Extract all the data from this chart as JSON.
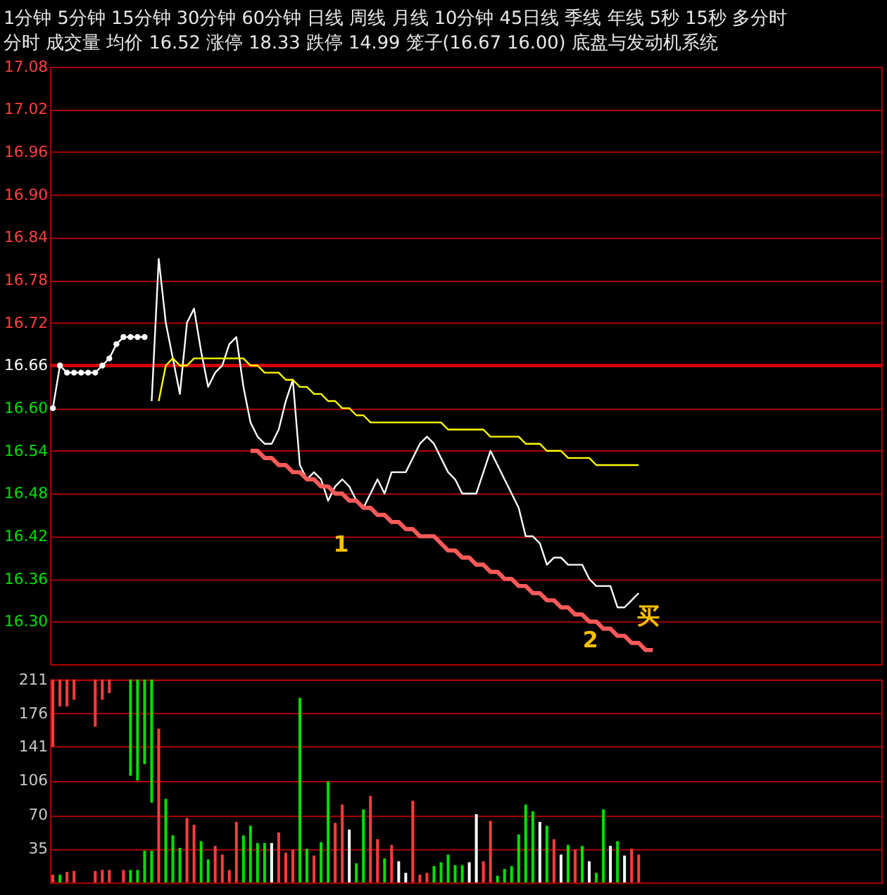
{
  "chart_data": [
    {
      "type": "line",
      "title": "分时  成交量  均价 16.52  涨停 18.33  跌停 14.99  笼子(16.67 16.00)  底盘与发动机系统",
      "annotations": [
        "1分钟  5分钟  15分钟  30分钟  60分钟  日线  周线  月线  10分钟  45日线  季线  年线  5秒  15秒  多分时",
        "1",
        "2",
        "买"
      ],
      "categories": [
        null,
        null,
        null,
        null,
        null,
        null,
        null,
        null,
        null,
        null,
        null,
        null,
        null,
        null,
        null,
        null,
        null,
        null,
        null,
        null,
        null,
        null,
        null,
        null,
        null,
        null,
        null,
        null,
        null,
        null,
        null,
        null,
        null,
        null,
        null,
        null,
        null,
        null,
        null,
        null,
        null,
        null,
        null,
        null,
        null,
        null,
        null,
        null,
        null,
        null,
        null,
        null,
        null,
        null,
        null,
        null,
        null,
        null,
        null,
        null,
        null,
        null,
        null,
        null,
        null,
        null,
        null,
        null,
        null,
        null,
        null,
        null,
        null,
        null,
        null,
        null,
        null,
        null,
        null,
        null,
        null,
        null,
        null,
        null,
        null,
        null,
        null,
        null,
        null,
        null,
        null,
        null,
        null,
        null,
        null,
        null,
        null,
        null,
        null,
        null,
        null,
        null,
        null,
        null,
        null,
        null,
        null,
        null,
        null,
        null,
        null,
        null,
        null,
        null,
        null,
        null,
        null,
        null
      ],
      "ylim": [
        16.24,
        17.08
      ],
      "yticks": [
        {
          "value": 16.3,
          "label": "16.30"
        },
        16.36,
        16.42,
        16.48,
        16.54,
        {
          "value": 16.6,
          "label": "16.60"
        },
        16.66,
        16.72,
        16.78,
        16.84,
        {
          "value": 16.9,
          "label": "16.90"
        },
        16.96,
        17.02,
        17.08
      ],
      "grid": "y",
      "tick_labels": "y",
      "ref_lines": [
        {
          "axis": "y",
          "value": 16.66,
          "color": "#d00000",
          "line_style": "solid"
        }
      ],
      "series": [
        {
          "type": "line",
          "color": "#ffffff",
          "marker": "circle",
          "values": [
            16.6,
            16.66,
            16.65,
            16.65,
            16.65,
            16.65,
            16.65,
            16.66,
            16.67,
            16.69,
            16.7,
            16.7,
            16.7,
            16.7,
            null,
            null,
            null,
            null,
            null,
            null,
            null,
            null,
            null,
            null,
            null,
            null,
            null,
            null,
            null,
            null,
            null,
            null,
            null,
            null,
            null,
            null,
            null,
            null,
            null,
            null,
            null,
            null,
            null,
            null,
            null,
            null,
            null,
            null,
            null,
            null,
            null,
            null,
            null,
            null,
            null,
            null,
            null,
            null,
            null,
            null,
            null,
            null,
            null,
            null,
            null,
            null,
            null,
            null,
            null,
            null,
            null,
            null,
            null,
            null,
            null,
            null,
            null,
            null,
            null,
            null,
            null,
            null,
            null,
            null,
            null,
            null,
            null,
            null,
            null,
            null,
            null,
            null,
            null,
            null,
            null,
            null,
            null,
            null,
            null,
            null,
            null,
            null,
            null,
            null,
            null,
            null,
            null,
            null,
            null,
            null,
            null,
            null,
            null,
            null,
            null,
            null,
            null,
            null
          ]
        },
        {
          "type": "line",
          "color": "#ffffff",
          "values": [
            null,
            null,
            null,
            null,
            null,
            null,
            null,
            null,
            null,
            null,
            null,
            null,
            null,
            null,
            16.61,
            16.81,
            16.72,
            16.67,
            16.62,
            16.72,
            16.74,
            16.68,
            16.63,
            16.65,
            16.66,
            16.69,
            16.7,
            16.63,
            16.58,
            16.56,
            16.55,
            16.55,
            16.57,
            16.61,
            16.64,
            16.52,
            16.5,
            16.51,
            16.5,
            16.47,
            16.49,
            16.5,
            16.49,
            16.47,
            16.46,
            16.48,
            16.5,
            16.48,
            16.51,
            16.51,
            16.51,
            16.53,
            16.55,
            16.56,
            16.55,
            16.53,
            16.51,
            16.5,
            16.48,
            16.48,
            16.48,
            16.51,
            16.54,
            16.52,
            16.5,
            16.48,
            16.46,
            16.42,
            16.42,
            16.41,
            16.38,
            16.39,
            16.39,
            16.38,
            16.38,
            16.38,
            16.36,
            16.35,
            16.35,
            16.35,
            16.32,
            16.32,
            16.33,
            16.34,
            null,
            null,
            null,
            null,
            null,
            null,
            null,
            null,
            null,
            null,
            null,
            null,
            null,
            null,
            null,
            null,
            null,
            null,
            null,
            null,
            null,
            null,
            null,
            null,
            null,
            null,
            null,
            null,
            null,
            null,
            null,
            null,
            null,
            null
          ]
        },
        {
          "type": "line",
          "color": "#ffff00",
          "values": [
            null,
            null,
            null,
            null,
            null,
            null,
            null,
            null,
            null,
            null,
            null,
            null,
            null,
            null,
            null,
            16.61,
            16.66,
            16.67,
            16.66,
            16.66,
            16.67,
            16.67,
            16.67,
            16.67,
            16.67,
            16.67,
            16.67,
            16.67,
            16.66,
            16.66,
            16.65,
            16.65,
            16.65,
            16.64,
            16.64,
            16.63,
            16.63,
            16.62,
            16.62,
            16.61,
            16.61,
            16.6,
            16.6,
            16.59,
            16.59,
            16.58,
            16.58,
            16.58,
            16.58,
            16.58,
            16.58,
            16.58,
            16.58,
            16.58,
            16.58,
            16.58,
            16.57,
            16.57,
            16.57,
            16.57,
            16.57,
            16.57,
            16.56,
            16.56,
            16.56,
            16.56,
            16.56,
            16.55,
            16.55,
            16.55,
            16.54,
            16.54,
            16.54,
            16.53,
            16.53,
            16.53,
            16.53,
            16.52,
            16.52,
            16.52,
            16.52,
            16.52,
            16.52,
            16.52,
            null,
            null,
            null,
            null,
            null,
            null,
            null,
            null,
            null,
            null,
            null,
            null,
            null,
            null,
            null,
            null,
            null,
            null,
            null,
            null,
            null,
            null,
            null,
            null,
            null,
            null,
            null,
            null,
            null,
            null,
            null,
            null,
            null,
            null
          ]
        },
        {
          "type": "line",
          "color": "#ff5a5a",
          "values": [
            null,
            null,
            null,
            null,
            null,
            null,
            null,
            null,
            null,
            null,
            null,
            null,
            null,
            null,
            null,
            null,
            null,
            null,
            null,
            null,
            null,
            null,
            null,
            null,
            null,
            null,
            null,
            null,
            16.54,
            16.54,
            16.53,
            16.53,
            16.52,
            16.52,
            16.51,
            16.51,
            16.5,
            16.5,
            16.49,
            16.49,
            16.48,
            16.48,
            16.47,
            16.47,
            16.46,
            16.46,
            16.45,
            16.45,
            16.44,
            16.44,
            16.43,
            16.43,
            16.42,
            16.42,
            16.42,
            16.41,
            16.4,
            16.4,
            16.39,
            16.39,
            16.38,
            16.38,
            16.37,
            16.37,
            16.36,
            16.36,
            16.35,
            16.35,
            16.34,
            16.34,
            16.33,
            16.33,
            16.32,
            16.32,
            16.31,
            16.31,
            16.3,
            16.3,
            16.29,
            16.29,
            16.28,
            16.28,
            16.27,
            16.27,
            16.26,
            16.26,
            null,
            null,
            null,
            null,
            null,
            null,
            null,
            null,
            null,
            null,
            null,
            null,
            null,
            null,
            null,
            null,
            null,
            null,
            null,
            null,
            null,
            null,
            null,
            null,
            null,
            null,
            null,
            null,
            null,
            null,
            null,
            null
          ]
        }
      ]
    },
    {
      "type": "bar",
      "categories": [
        null,
        null,
        null,
        null,
        null,
        null,
        null,
        null,
        null,
        null,
        null,
        null,
        null,
        null,
        null,
        null,
        null,
        null,
        null,
        null,
        null,
        null,
        null,
        null,
        null,
        null,
        null,
        null,
        null,
        null,
        null,
        null,
        null,
        null,
        null,
        null,
        null,
        null,
        null,
        null,
        null,
        null,
        null,
        null,
        null,
        null,
        null,
        null,
        null,
        null,
        null,
        null,
        null,
        null,
        null,
        null,
        null,
        null,
        null,
        null,
        null,
        null,
        null,
        null,
        null,
        null,
        null,
        null,
        null,
        null,
        null,
        null,
        null,
        null,
        null,
        null,
        null,
        null,
        null,
        null,
        null,
        null,
        null,
        null,
        null,
        null,
        null,
        null,
        null,
        null,
        null,
        null,
        null,
        null,
        null,
        null,
        null,
        null,
        null,
        null,
        null,
        null,
        null,
        null,
        null,
        null,
        null,
        null,
        null,
        null,
        null,
        null,
        null,
        null,
        null,
        null,
        null,
        null
      ],
      "ylim": [
        0,
        211
      ],
      "yticks": [
        35,
        70,
        106,
        141,
        176,
        211
      ],
      "grid": "y",
      "tick_labels": "y",
      "series": [
        {
          "values": [
            8,
            8,
            11,
            12,
            null,
            null,
            12,
            13,
            13,
            null,
            13,
            13,
            13,
            33,
            33,
            160,
            87,
            49,
            36,
            67,
            60,
            43,
            24,
            38,
            29,
            13,
            63,
            49,
            59,
            41,
            41,
            41,
            52,
            31,
            34,
            192,
            35,
            28,
            42,
            105,
            62,
            81,
            55,
            20,
            76,
            90,
            45,
            25,
            39,
            22,
            10,
            85,
            8,
            10,
            17,
            21,
            29,
            18,
            18,
            21,
            71,
            22,
            64,
            7,
            14,
            17,
            50,
            81,
            74,
            63,
            59,
            45,
            29,
            39,
            34,
            38,
            22,
            10,
            76,
            38,
            43,
            28,
            35,
            29,
            null,
            null,
            null,
            null,
            null,
            null,
            null,
            null,
            null,
            null,
            null,
            null,
            null,
            null,
            null,
            null,
            null,
            null,
            null,
            null,
            null,
            null,
            null,
            null,
            null,
            null,
            null,
            null,
            null,
            null,
            null,
            null,
            null,
            null
          ],
          "colors": [
            "#ff3c3c",
            "#00e000",
            "#ff3c3c",
            "#ff3c3c",
            null,
            null,
            "#ff3c3c",
            "#ff3c3c",
            "#ff3c3c",
            null,
            "#ff3c3c",
            "#00e000",
            "#00e000",
            "#00e000",
            "#00e000",
            "#ff3c3c",
            "#00e000",
            "#00e000",
            "#00e000",
            "#ff3c3c",
            "#ff3c3c",
            "#00e000",
            "#00e000",
            "#ff3c3c",
            "#ff3c3c",
            "#ff3c3c",
            "#ff3c3c",
            "#00e000",
            "#00e000",
            "#00e000",
            "#00e000",
            "#ffffff",
            "#ff3c3c",
            "#ff3c3c",
            "#ff3c3c",
            "#00e000",
            "#00e000",
            "#ff3c3c",
            "#00e000",
            "#00e000",
            "#ff3c3c",
            "#ff3c3c",
            "#ffffff",
            "#00e000",
            "#00e000",
            "#ff3c3c",
            "#ff3c3c",
            "#00e000",
            "#ff3c3c",
            "#ffffff",
            "#ffffff",
            "#ff3c3c",
            "#ff3c3c",
            "#ff3c3c",
            "#00e000",
            "#00e000",
            "#00e000",
            "#00e000",
            "#00e000",
            "#ffffff",
            "#ffffff",
            "#ff3c3c",
            "#ff3c3c",
            "#00e000",
            "#00e000",
            "#00e000",
            "#00e000",
            "#00e000",
            "#00e000",
            "#ffffff",
            "#00e000",
            "#ff3c3c",
            "#ffffff",
            "#00e000",
            "#ff3c3c",
            "#00e000",
            "#ffffff",
            "#00e000",
            "#00e000",
            "#ffffff",
            "#00e000",
            "#ffffff",
            "#ff3c3c",
            "#ff3c3c",
            null,
            null,
            null,
            null,
            null,
            null,
            null,
            null,
            null,
            null,
            null,
            null,
            null,
            null,
            null,
            null,
            null,
            null,
            null,
            null,
            null,
            null,
            null,
            null,
            null,
            null,
            null,
            null,
            null,
            null,
            null,
            null,
            null,
            null
          ]
        },
        {
          "values": [
            70,
            28,
            28,
            21,
            null,
            null,
            49,
            21,
            14,
            null,
            null,
            100,
            105,
            88,
            128,
            null,
            null,
            null,
            null,
            null,
            null,
            null,
            null,
            null,
            null,
            null,
            null,
            null,
            null,
            null,
            null,
            null,
            null,
            null,
            null,
            null,
            null,
            null,
            null,
            null,
            null,
            null,
            null,
            null,
            null,
            null,
            null,
            null,
            null,
            null,
            null,
            null,
            null,
            null,
            null,
            null,
            null,
            null,
            null,
            null,
            null,
            null,
            null,
            null,
            null,
            null,
            null,
            null,
            null,
            null,
            null,
            null,
            null,
            null,
            null,
            null,
            null,
            null,
            null,
            null,
            null,
            null,
            null,
            null,
            null,
            null,
            null,
            null,
            null,
            null,
            null,
            null,
            null,
            null,
            null,
            null,
            null,
            null,
            null,
            null,
            null,
            null,
            null,
            null,
            null,
            null,
            null,
            null,
            null,
            null,
            null,
            null,
            null,
            null,
            null,
            null,
            null,
            null
          ],
          "base": [
            141,
            183,
            183,
            190,
            null,
            null,
            162,
            190,
            197,
            null,
            null,
            111,
            106,
            123,
            83,
            null,
            null,
            null,
            null,
            null,
            null,
            null,
            null,
            null,
            null,
            null,
            null,
            null,
            null,
            null,
            null,
            null,
            null,
            null,
            null,
            null,
            null,
            null,
            null,
            null,
            null,
            null,
            null,
            null,
            null,
            null,
            null,
            null,
            null,
            null,
            null,
            null,
            null,
            null,
            null,
            null,
            null,
            null,
            null,
            null,
            null,
            null,
            null,
            null,
            null,
            null,
            null,
            null,
            null,
            null,
            null,
            null,
            null,
            null,
            null,
            null,
            null,
            null,
            null,
            null,
            null,
            null,
            null,
            null,
            null,
            null,
            null,
            null,
            null,
            null,
            null,
            null,
            null,
            null,
            null,
            null,
            null,
            null,
            null,
            null,
            null,
            null,
            null,
            null,
            null,
            null,
            null,
            null,
            null,
            null,
            null,
            null,
            null,
            null,
            null,
            null,
            null,
            null
          ],
          "colors": [
            "#ff3c3c",
            "#ff3c3c",
            "#ff3c3c",
            "#ff3c3c",
            null,
            null,
            "#ff3c3c",
            "#ff3c3c",
            "#ff3c3c",
            null,
            null,
            "#00e000",
            "#00e000",
            "#00e000",
            "#00e000",
            null,
            null,
            null,
            null,
            null,
            null,
            null,
            null,
            null,
            null,
            null,
            null,
            null,
            null,
            null,
            null,
            null,
            null,
            null,
            null,
            null,
            null,
            null,
            null,
            null,
            null,
            null,
            null,
            null,
            null,
            null,
            null,
            null,
            null,
            null,
            null,
            null,
            null,
            null,
            null,
            null,
            null,
            null,
            null,
            null,
            null,
            null,
            null,
            null,
            null,
            null,
            null,
            null,
            null,
            null,
            null,
            null,
            null,
            null,
            null,
            null,
            null,
            null,
            null,
            null,
            null,
            null,
            null,
            null,
            null,
            null,
            null,
            null,
            null,
            null,
            null,
            null,
            null,
            null,
            null,
            null,
            null,
            null,
            null,
            null,
            null,
            null,
            null,
            null,
            null,
            null,
            null,
            null,
            null,
            null,
            null,
            null,
            null,
            null,
            null,
            null,
            null,
            null
          ]
        }
      ]
    }
  ]
}
